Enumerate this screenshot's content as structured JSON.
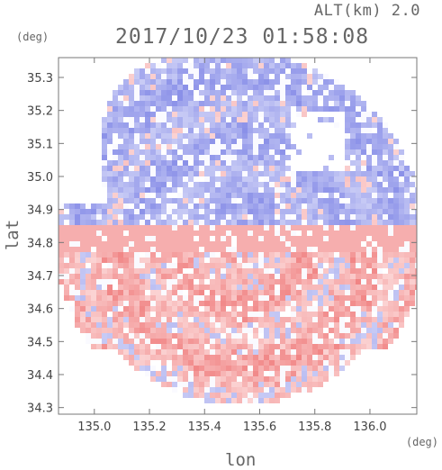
{
  "header": {
    "altitude": "ALT(km) 2.0",
    "timestamp": "2017/10/23 01:58:08"
  },
  "chart_data": {
    "type": "heatmap",
    "title": "2017/10/23 01:58:08",
    "subtitle": "ALT(km) 2.0",
    "xlabel": "lon",
    "ylabel": "lat",
    "x_units": "(deg)",
    "y_units": "(deg)",
    "xlim": [
      134.87,
      136.17
    ],
    "ylim": [
      34.28,
      35.36
    ],
    "x_ticks": [
      "135.0",
      "135.2",
      "135.4",
      "135.6",
      "135.8",
      "136.0"
    ],
    "x_tick_values": [
      135.0,
      135.2,
      135.4,
      135.6,
      135.8,
      136.0
    ],
    "y_ticks": [
      "34.3",
      "34.4",
      "34.5",
      "34.6",
      "34.7",
      "34.8",
      "34.9",
      "35.0",
      "35.1",
      "35.2",
      "35.3"
    ],
    "y_tick_values": [
      34.3,
      34.4,
      34.5,
      34.6,
      34.7,
      34.8,
      34.9,
      35.0,
      35.1,
      35.2,
      35.3
    ],
    "radar_center": [
      135.52,
      34.82
    ],
    "colors": {
      "positive": "#f08080",
      "negative": "#8a90e8",
      "positive_light": "#fbd3d3",
      "negative_light": "#c8cbf5",
      "axis": "#777777"
    }
  }
}
